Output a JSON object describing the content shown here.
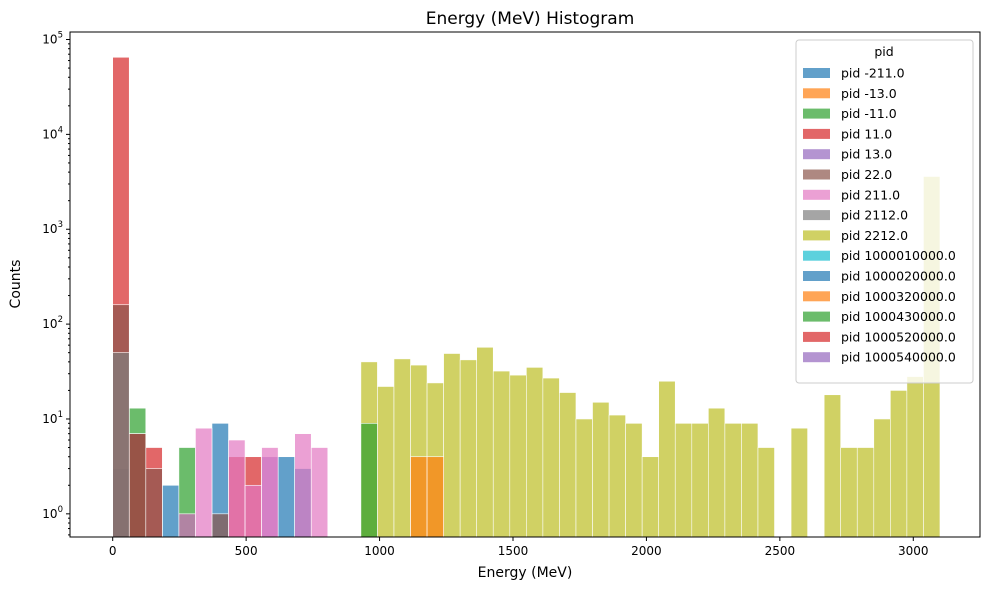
{
  "chart_data": {
    "type": "histogram",
    "title": "Energy (MeV) Histogram",
    "xlabel": "Energy (MeV)",
    "ylabel": "Counts",
    "xlim": [
      -160,
      3250
    ],
    "ylim": [
      0.57,
      120000
    ],
    "yscale": "log",
    "x_ticks": [
      0,
      500,
      1000,
      1500,
      2000,
      2500,
      3000
    ],
    "y_ticks": [
      {
        "value": 1,
        "base": "10",
        "exp": "0"
      },
      {
        "value": 10,
        "base": "10",
        "exp": "1"
      },
      {
        "value": 100,
        "base": "10",
        "exp": "2"
      },
      {
        "value": 1000,
        "base": "10",
        "exp": "3"
      },
      {
        "value": 10000,
        "base": "10",
        "exp": "4"
      },
      {
        "value": 100000,
        "base": "10",
        "exp": "5"
      }
    ],
    "bin_width": 62,
    "grid": false,
    "legend": {
      "title": "pid",
      "placement": "upper-right"
    },
    "series": [
      {
        "name": "pid -211.0",
        "color": "#1f77b4",
        "bins": [
          [
            0,
            0
          ],
          [
            0,
            3
          ],
          [
            186,
            2
          ],
          [
            248,
            1
          ],
          [
            372,
            9
          ],
          [
            620,
            4
          ],
          [
            682,
            3
          ]
        ]
      },
      {
        "name": "pid -13.0",
        "color": "#ff7f0e",
        "bins": []
      },
      {
        "name": "pid -11.0",
        "color": "#2ca02c",
        "bins": [
          [
            62,
            13
          ],
          [
            248,
            5
          ]
        ]
      },
      {
        "name": "pid 11.0",
        "color": "#d62728",
        "bins": [
          [
            0,
            65000
          ],
          [
            62,
            7
          ],
          [
            124,
            5
          ],
          [
            434,
            4
          ],
          [
            496,
            4
          ]
        ]
      },
      {
        "name": "pid 13.0",
        "color": "#9467bd",
        "bins": [
          [
            558,
            4
          ]
        ]
      },
      {
        "name": "pid 22.0",
        "color": "#8c564b",
        "bins": [
          [
            0,
            160
          ],
          [
            62,
            7
          ],
          [
            124,
            3
          ],
          [
            372,
            1
          ]
        ]
      },
      {
        "name": "pid 211.0",
        "color": "#e377c2",
        "bins": [
          [
            248,
            1
          ],
          [
            310,
            8
          ],
          [
            434,
            6
          ],
          [
            496,
            2
          ],
          [
            558,
            5
          ],
          [
            682,
            7
          ],
          [
            744,
            5
          ]
        ]
      },
      {
        "name": "pid 2112.0",
        "color": "#7f7f7f",
        "bins": [
          [
            0,
            50
          ]
        ]
      },
      {
        "name": "pid 2212.0",
        "color": "#bcbd22",
        "bins": [
          [
            930,
            40
          ],
          [
            992,
            22
          ],
          [
            1054,
            43
          ],
          [
            1116,
            37
          ],
          [
            1178,
            24
          ],
          [
            1240,
            49
          ],
          [
            1302,
            42
          ],
          [
            1364,
            57
          ],
          [
            1426,
            32
          ],
          [
            1488,
            29
          ],
          [
            1550,
            35
          ],
          [
            1612,
            27
          ],
          [
            1674,
            19
          ],
          [
            1736,
            10
          ],
          [
            1798,
            15
          ],
          [
            1860,
            11
          ],
          [
            1922,
            9
          ],
          [
            1984,
            4
          ],
          [
            2046,
            25
          ],
          [
            2108,
            9
          ],
          [
            2170,
            9
          ],
          [
            2232,
            13
          ],
          [
            2294,
            9
          ],
          [
            2356,
            9
          ],
          [
            2418,
            5
          ],
          [
            2542,
            8
          ],
          [
            2666,
            18
          ],
          [
            2728,
            5
          ],
          [
            2790,
            5
          ],
          [
            2852,
            10
          ],
          [
            2914,
            20
          ],
          [
            2976,
            28
          ],
          [
            3038,
            3600
          ]
        ]
      },
      {
        "name": "pid 1000010000.0",
        "color": "#17becf",
        "bins": []
      },
      {
        "name": "pid 1000020000.0",
        "color": "#1f77b4",
        "bins": []
      },
      {
        "name": "pid 1000320000.0",
        "color": "#ff7f0e",
        "bins": [
          [
            1116,
            4
          ],
          [
            1178,
            4
          ]
        ]
      },
      {
        "name": "pid 1000430000.0",
        "color": "#2ca02c",
        "bins": [
          [
            930,
            9
          ]
        ]
      },
      {
        "name": "pid 1000520000.0",
        "color": "#d62728",
        "bins": []
      },
      {
        "name": "pid 1000540000.0",
        "color": "#9467bd",
        "bins": []
      }
    ]
  }
}
